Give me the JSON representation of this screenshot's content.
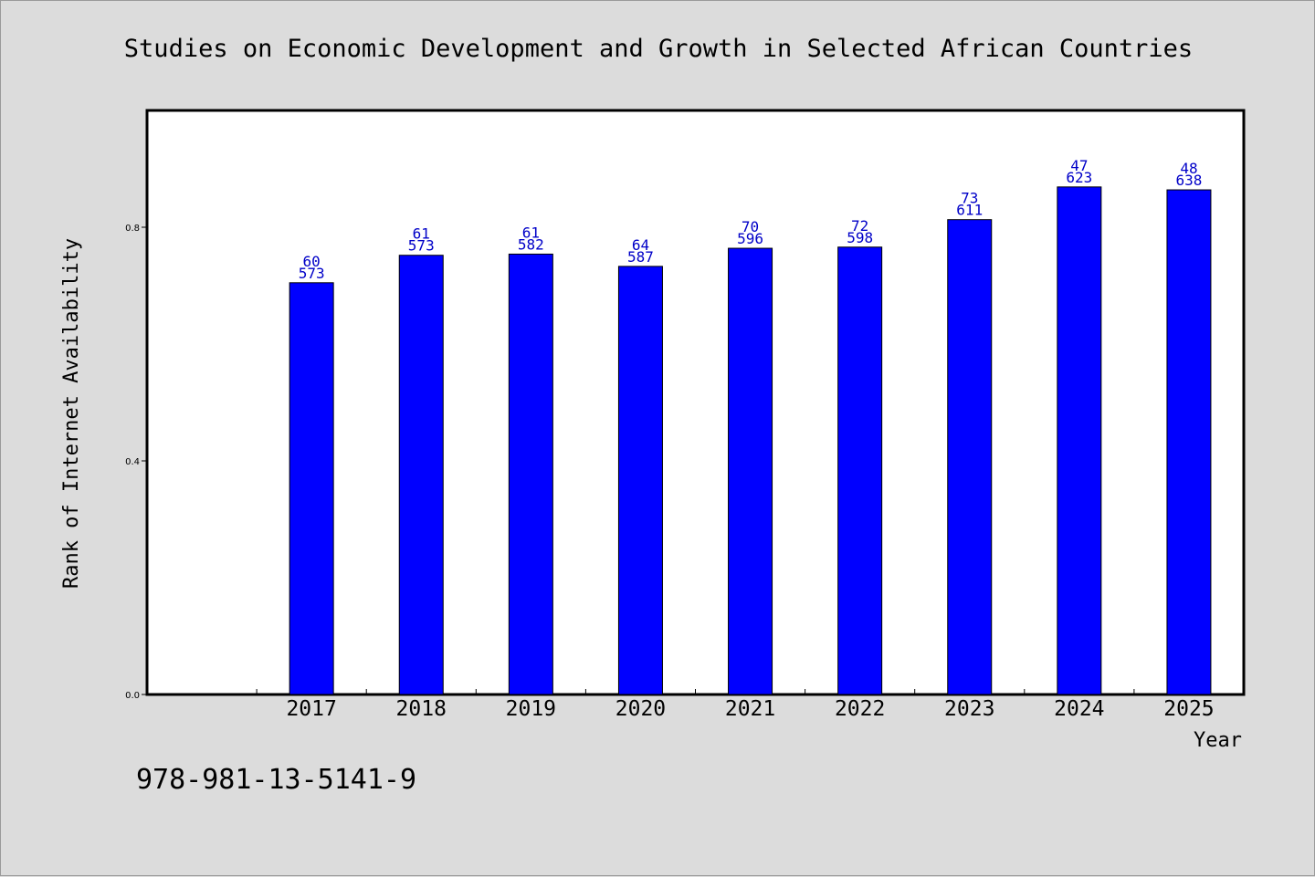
{
  "chart_data": {
    "type": "bar",
    "title": "Studies on Economic Development and Growth in Selected African Countries",
    "xlabel": "Year",
    "ylabel": "Rank of Internet Availability",
    "categories": [
      "2017",
      "2018",
      "2019",
      "2020",
      "2021",
      "2022",
      "2023",
      "2024",
      "2025"
    ],
    "values": [
      0.705,
      0.752,
      0.754,
      0.733,
      0.764,
      0.766,
      0.813,
      0.869,
      0.864
    ],
    "data_labels": [
      [
        "60",
        "573"
      ],
      [
        "61",
        "573"
      ],
      [
        "61",
        "582"
      ],
      [
        "64",
        "587"
      ],
      [
        "70",
        "596"
      ],
      [
        "72",
        "598"
      ],
      [
        "73",
        "611"
      ],
      [
        "47",
        "623"
      ],
      [
        "48",
        "638"
      ]
    ],
    "yticks": [
      "0.0",
      "0.4",
      "0.8"
    ],
    "ytick_values": [
      0.0,
      0.4,
      0.8
    ],
    "ylim": [
      0,
      1.0
    ],
    "grid": false,
    "colors": {
      "bar": "#0000ff",
      "bar_edge": "#000000",
      "label": "#0000c8",
      "background": "#dcdcdc",
      "plot_background": "#ffffff"
    }
  },
  "footer": {
    "identifier": "978-981-13-5141-9"
  }
}
